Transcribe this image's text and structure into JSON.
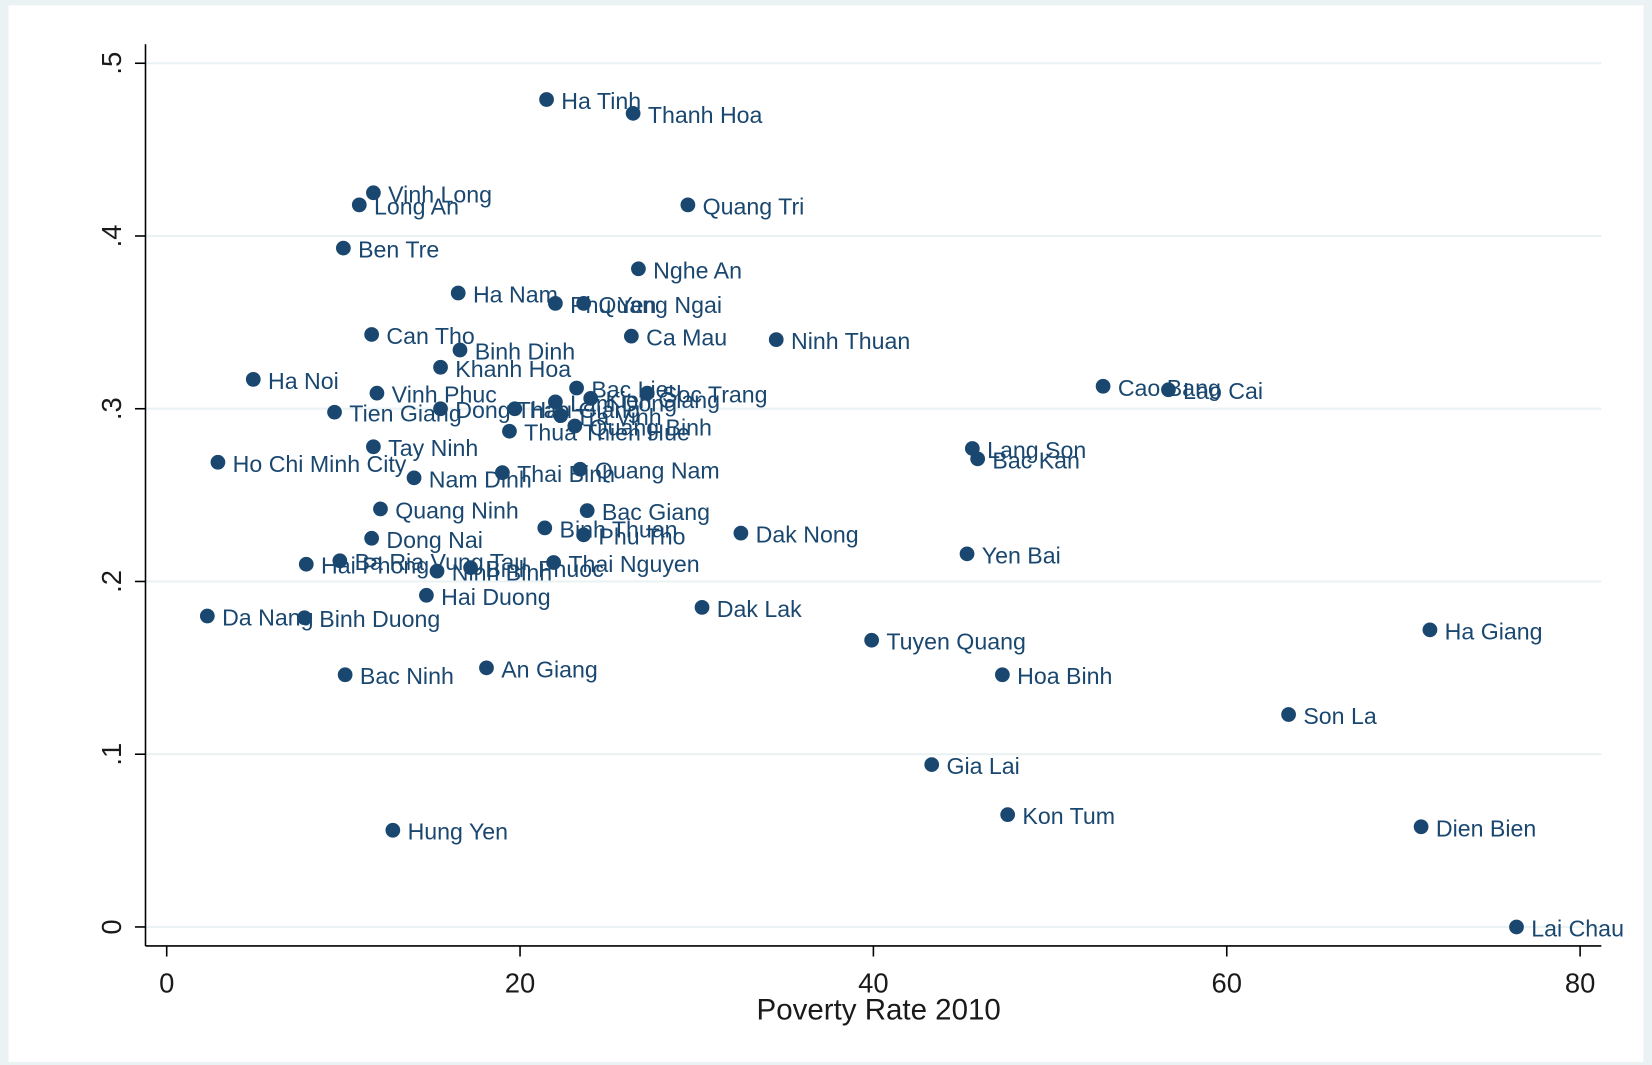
{
  "chart_data": {
    "type": "scatter",
    "x_label": "Poverty Rate 2010",
    "xlim": [
      -1.2,
      81.2
    ],
    "ylim": [
      -0.011,
      0.511
    ],
    "xticks": [
      0,
      20,
      40,
      60,
      80
    ],
    "yticks": [
      0,
      {
        "value": 0.1,
        "label": ".1"
      },
      {
        "value": 0.2,
        "label": ".2"
      },
      {
        "value": 0.3,
        "label": ".3"
      },
      {
        "value": 0.4,
        "label": ".4"
      },
      {
        "value": 0.5,
        "label": ".5"
      }
    ],
    "grid": true,
    "labels": [
      "Ha Tinh",
      "Thanh Hoa",
      "Vinh Long",
      "Long An",
      "Quang Tri",
      "Ben Tre",
      "Nghe An",
      "Ha Nam",
      "Phu Yen",
      "Quang Ngai",
      "Can Tho",
      "Ca Mau",
      "Ninh Thuan",
      "Binh Dinh",
      "Khanh Hoa",
      "Ha Noi",
      "Cao Bang",
      "Lao Cai",
      "Bac Lieu",
      "Vinh Phuc",
      "Soc Trang",
      "Kien Giang",
      "Lam Dong",
      "Dong Thap",
      "Hau Giang",
      "Tra Vinh",
      "Tien Giang",
      "Thua Thien Hue",
      "Quang Binh",
      "Lang Son",
      "Bac Kan",
      "Tay Ninh",
      "Ho Chi Minh City",
      "Thai Binh",
      "Quang Nam",
      "Nam Dinh",
      "Bac Giang",
      "Quang Ninh",
      "Binh Thuan",
      "Phu Tho",
      "Dak Nong",
      "Dong Nai",
      "Yen Bai",
      "Ba Ria Vung Tau",
      "Hai Phong",
      "Ninh Binh",
      "Binh Phuoc",
      "Thai Nguyen",
      "Hai Duong",
      "Dak Lak",
      "Da Nang",
      "Binh Duong",
      "Tuyen Quang",
      "Ha Giang",
      "Bac Ninh",
      "An Giang",
      "Hoa Binh",
      "Son La",
      "Gia Lai",
      "Kon Tum",
      "Dien Bien",
      "Hung Yen",
      "Lai Chau"
    ],
    "x": [
      21.5,
      26.4,
      11.7,
      10.9,
      29.5,
      10.0,
      26.7,
      16.5,
      22.0,
      23.6,
      11.6,
      26.3,
      34.5,
      16.6,
      15.5,
      4.9,
      53.0,
      56.7,
      23.2,
      11.9,
      27.2,
      24.0,
      22.0,
      15.5,
      19.7,
      22.3,
      9.5,
      19.4,
      23.1,
      45.6,
      45.9,
      11.7,
      2.9,
      19.0,
      23.4,
      14.0,
      23.8,
      12.1,
      21.4,
      23.6,
      32.5,
      11.6,
      45.3,
      9.8,
      7.9,
      15.3,
      17.2,
      21.9,
      14.7,
      30.3,
      2.3,
      7.8,
      39.9,
      71.5,
      10.1,
      18.1,
      47.3,
      63.5,
      43.3,
      47.6,
      71.0,
      12.8,
      76.4
    ],
    "series": [
      {
        "color": "#1a476f",
        "values": [
          0.479,
          0.471,
          0.425,
          0.418,
          0.418,
          0.393,
          0.381,
          0.367,
          0.361,
          0.361,
          0.343,
          0.342,
          0.34,
          0.334,
          0.324,
          0.317,
          0.313,
          0.311,
          0.312,
          0.309,
          0.309,
          0.306,
          0.304,
          0.3,
          0.3,
          0.296,
          0.298,
          0.287,
          0.29,
          0.277,
          0.271,
          0.278,
          0.269,
          0.263,
          0.265,
          0.26,
          0.241,
          0.242,
          0.231,
          0.227,
          0.228,
          0.225,
          0.216,
          0.212,
          0.21,
          0.206,
          0.208,
          0.211,
          0.192,
          0.185,
          0.18,
          0.179,
          0.166,
          0.172,
          0.146,
          0.15,
          0.146,
          0.123,
          0.094,
          0.065,
          0.058,
          0.056,
          0.0
        ]
      }
    ]
  }
}
